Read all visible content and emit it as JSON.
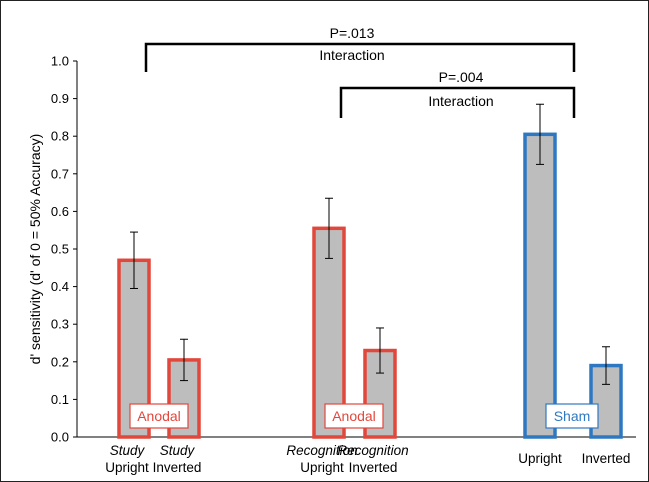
{
  "chart_data": {
    "type": "bar",
    "ylabel": "d' sensitivity (d' of 0 = 50% Accuracy)",
    "ylim": [
      0,
      1.0
    ],
    "yticks": [
      "0.0",
      "0.1",
      "0.2",
      "0.3",
      "0.4",
      "0.5",
      "0.6",
      "0.7",
      "0.8",
      "0.9",
      "1.0"
    ],
    "grid": false,
    "categories": [
      {
        "line1": "Study",
        "line1_italic": true,
        "line2": "Upright"
      },
      {
        "line1": "Study",
        "line1_italic": true,
        "line2": "Inverted"
      },
      {
        "line1": "Recognition",
        "line1_italic": true,
        "line2": "Upright"
      },
      {
        "line1": "Recognition",
        "line1_italic": true,
        "line2": "Inverted"
      },
      {
        "line1": "",
        "line1_italic": false,
        "line2": "Upright"
      },
      {
        "line1": "",
        "line1_italic": false,
        "line2": "Inverted"
      }
    ],
    "values": [
      0.47,
      0.205,
      0.555,
      0.23,
      0.805,
      0.19
    ],
    "error": [
      0.075,
      0.055,
      0.08,
      0.06,
      0.08,
      0.05
    ],
    "bar_fill": "#bdbdbd",
    "groups": [
      {
        "label": "Anodal",
        "color": "#e2473c",
        "bars": [
          0,
          1
        ]
      },
      {
        "label": "Anodal",
        "color": "#e2473c",
        "bars": [
          2,
          3
        ]
      },
      {
        "label": "Sham",
        "color": "#2e78c2",
        "bars": [
          4,
          5
        ]
      }
    ],
    "annotations": [
      {
        "p": "P=.013",
        "label": "Interaction",
        "from_bar": 0,
        "to_bar": 4
      },
      {
        "p": "P=.004",
        "label": "Interaction",
        "from_bar": 2,
        "to_bar": 4
      }
    ]
  }
}
